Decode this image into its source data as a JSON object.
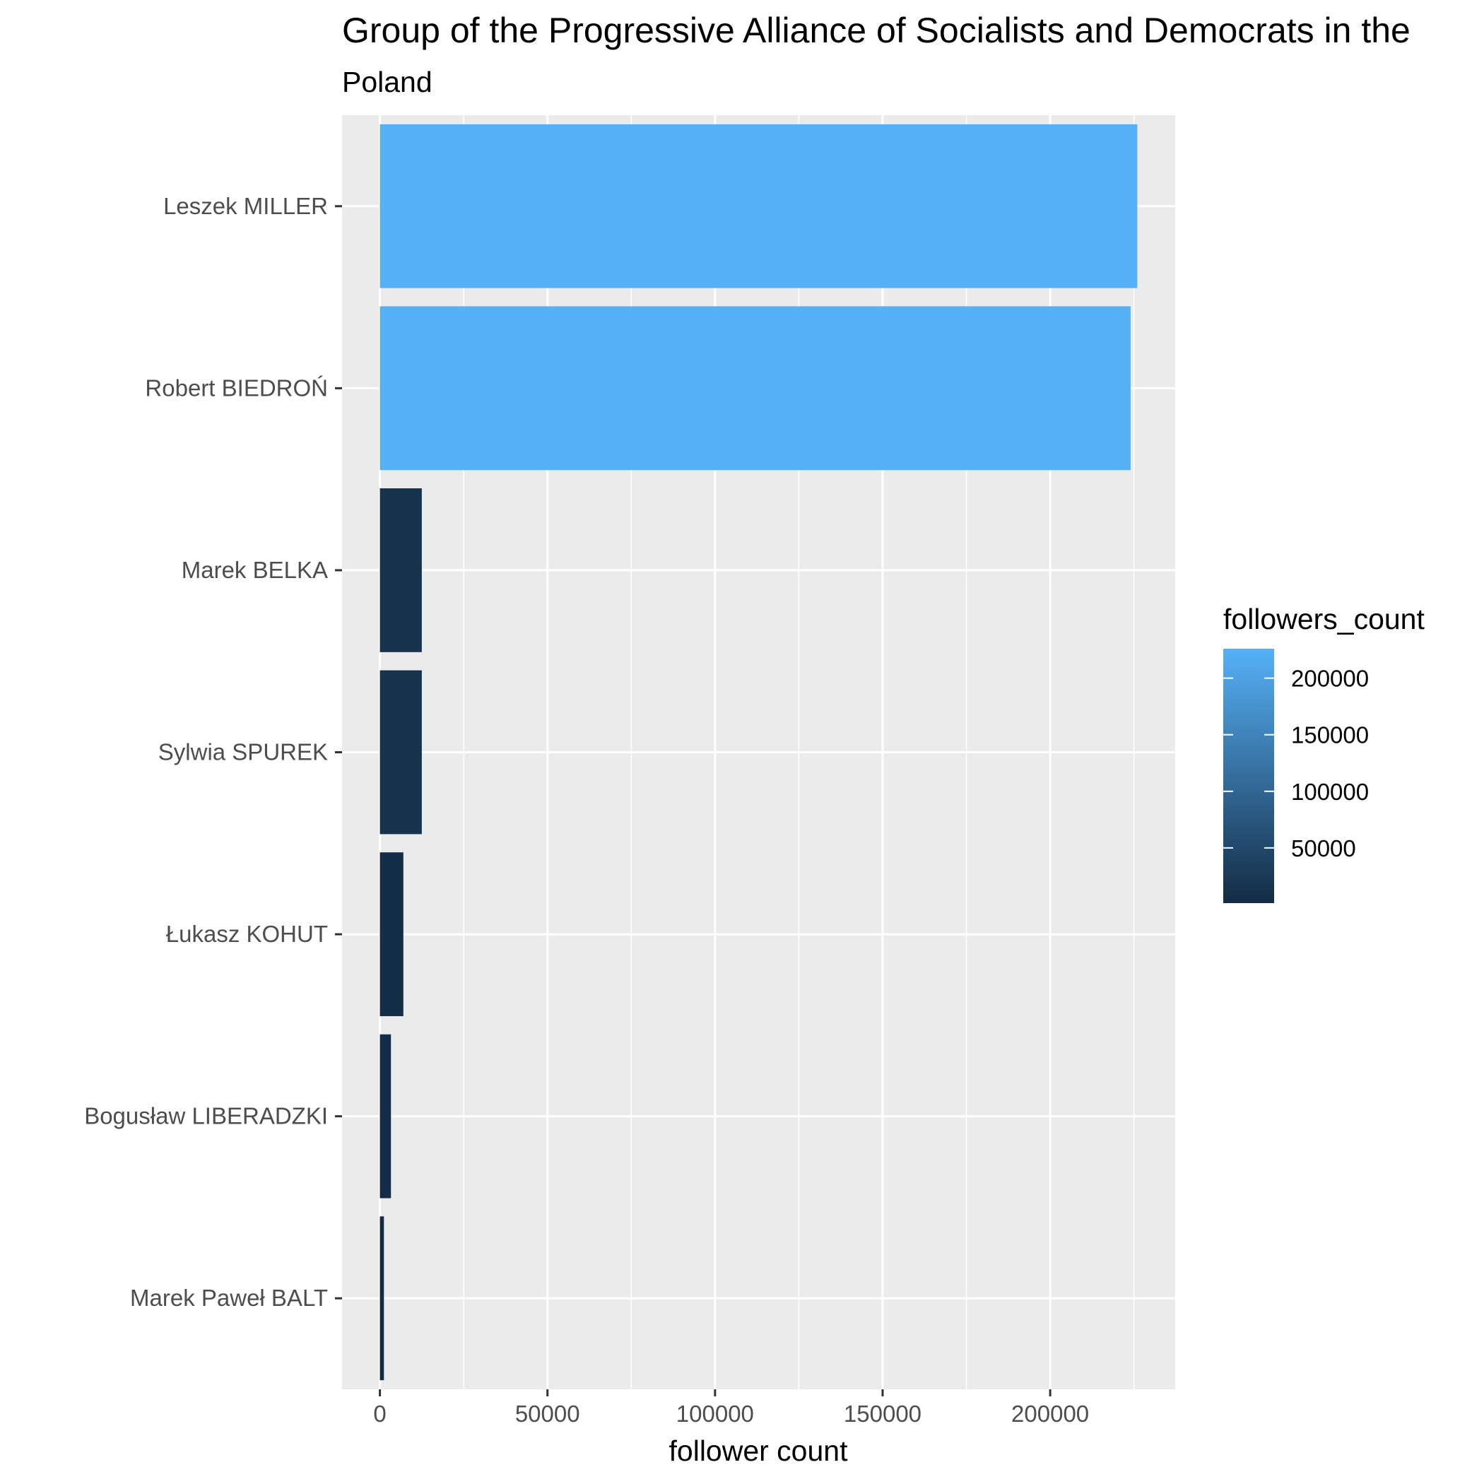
{
  "chart_data": {
    "type": "bar",
    "orientation": "horizontal",
    "title": "Group of the Progressive Alliance of Socialists and Democrats in the",
    "subtitle": "Poland",
    "xlabel": "follower count",
    "ylabel": "",
    "categories": [
      "Leszek MILLER",
      "Robert BIEDROŃ",
      "Marek BELKA",
      "Sylwia SPUREK",
      "Łukasz KOHUT",
      "Bogusław LIBERADZKI",
      "Marek Paweł BALT"
    ],
    "values": [
      226000,
      224000,
      12500,
      12500,
      7000,
      3300,
      1200
    ],
    "xlim": [
      -11300,
      237300
    ],
    "x_ticks": [
      0,
      50000,
      100000,
      150000,
      200000
    ],
    "x_tick_labels": [
      "0",
      "50000",
      "100000",
      "150000",
      "200000"
    ],
    "grid": true,
    "legend": {
      "title": "followers_count",
      "position": "right",
      "type": "continuous",
      "range": [
        1200,
        226000
      ],
      "ticks": [
        50000,
        100000,
        150000,
        200000
      ],
      "tick_labels": [
        "50000",
        "100000",
        "150000",
        "200000"
      ],
      "colors": {
        "low": "#132B43",
        "high": "#56B1F7"
      }
    },
    "panel_background": "#EBEBEB",
    "grid_color": "#FFFFFF"
  }
}
